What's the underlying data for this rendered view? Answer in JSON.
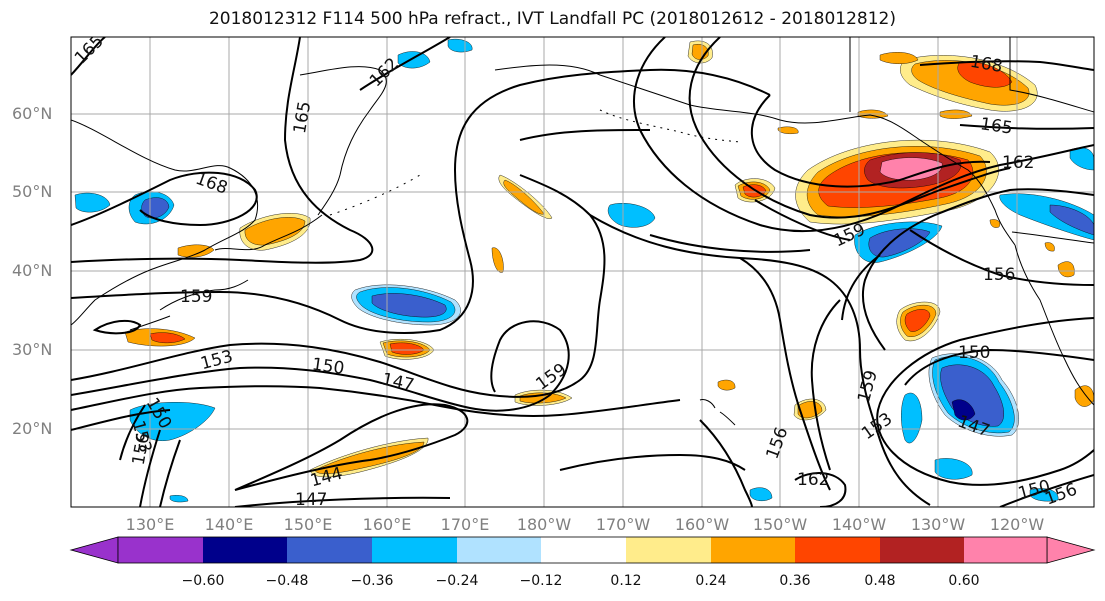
{
  "title": "2018012312 F114 500 hPa refract., IVT Landfall PC (2018012612 - 2018012812)",
  "lat_labels": [
    "60°N",
    "50°N",
    "40°N",
    "30°N",
    "20°N"
  ],
  "lon_labels": [
    "130°E",
    "140°E",
    "150°E",
    "160°E",
    "170°E",
    "180°W",
    "170°W",
    "160°W",
    "150°W",
    "140°W",
    "130°W",
    "120°W"
  ],
  "contour_labels": [
    "165",
    "162",
    "168",
    "165",
    "168",
    "165",
    "162",
    "159",
    "156",
    "159",
    "153",
    "150",
    "147",
    "159",
    "150",
    "144",
    "147",
    "156",
    "153",
    "150",
    "159",
    "153",
    "156",
    "162",
    "147",
    "150",
    "156"
  ],
  "colorbar": {
    "ticks": [
      "−0.60",
      "−0.48",
      "−0.36",
      "−0.24",
      "−0.12",
      "0.12",
      "0.24",
      "0.36",
      "0.48",
      "0.60"
    ],
    "colors": [
      "#9932cc",
      "#00008b",
      "#3a5fcd",
      "#00bfff",
      "#b0e2ff",
      "#ffffff",
      "#ffec8b",
      "#ffa500",
      "#ff4500",
      "#b22222",
      "#ff82ab"
    ]
  },
  "fill_colors": {
    "neg_light": "#b0e2ff",
    "neg_mid": "#00bfff",
    "neg_dark": "#3a5fcd",
    "neg_darkest": "#00008b",
    "pos_light": "#ffec8b",
    "pos_mid": "#ffa500",
    "pos_dark": "#ff4500",
    "pos_darker": "#b22222",
    "pos_max": "#ff82ab"
  }
}
